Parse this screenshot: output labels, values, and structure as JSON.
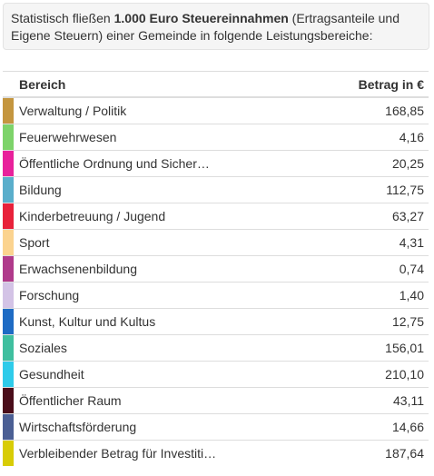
{
  "intro": {
    "text_before": "Statistisch fließen ",
    "bold": "1.000 Euro Steuereinnahmen",
    "text_after": " (Ertragsanteile und Eigene Steuern) einer Gemeinde in folgende Leistungsbereiche:"
  },
  "table": {
    "header": [
      "Bereich",
      "Betrag in €"
    ],
    "rows": [
      {
        "name": "Verwaltung / Politik",
        "value": "168,85",
        "color": "#c4963f"
      },
      {
        "name": "Feuerwehrwesen",
        "value": "4,16",
        "color": "#7dd36a"
      },
      {
        "name": "Öffentliche Ordnung und Sicher…",
        "value": "20,25",
        "color": "#e8219b"
      },
      {
        "name": "Bildung",
        "value": "112,75",
        "color": "#5aaecb"
      },
      {
        "name": "Kinderbetreuung / Jugend",
        "value": "63,27",
        "color": "#e8213a"
      },
      {
        "name": "Sport",
        "value": "4,31",
        "color": "#fbd38f"
      },
      {
        "name": "Erwachsenenbildung",
        "value": "0,74",
        "color": "#b03a8b"
      },
      {
        "name": "Forschung",
        "value": "1,40",
        "color": "#d3c3e6"
      },
      {
        "name": "Kunst, Kultur und Kultus",
        "value": "12,75",
        "color": "#1e6bc4"
      },
      {
        "name": "Soziales",
        "value": "156,01",
        "color": "#3fbf9f"
      },
      {
        "name": "Gesundheit",
        "value": "210,10",
        "color": "#2ecbea"
      },
      {
        "name": "Öffentlicher Raum",
        "value": "43,11",
        "color": "#4a0d1a"
      },
      {
        "name": "Wirtschaftsförderung",
        "value": "14,66",
        "color": "#4b5f94"
      },
      {
        "name": "Verbleibender Betrag für Investiti…",
        "value": "187,64",
        "color": "#d8cc06"
      }
    ]
  }
}
